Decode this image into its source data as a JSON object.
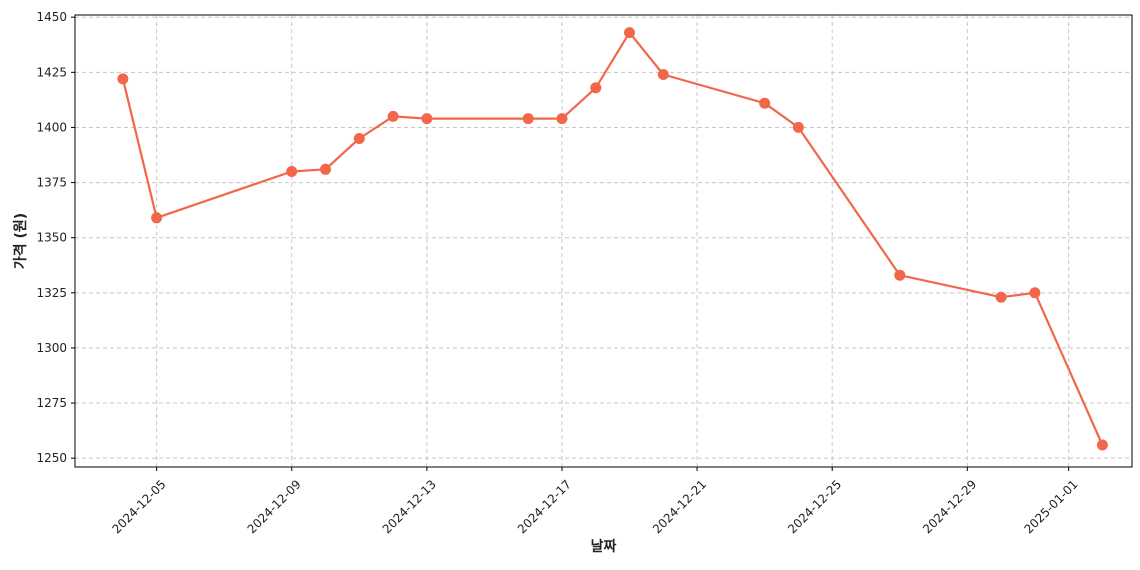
{
  "chart_data": {
    "type": "line",
    "title": "",
    "xlabel": "날짜",
    "ylabel": "가격 (원)",
    "grid": true,
    "ylim": [
      1246,
      1451
    ],
    "xlim": [
      "2024-12-02T14:00",
      "2025-01-02T21:00"
    ],
    "yticks": [
      1250,
      1275,
      1300,
      1325,
      1350,
      1375,
      1400,
      1425,
      1450
    ],
    "xticks": [
      "2024-12-05",
      "2024-12-09",
      "2024-12-13",
      "2024-12-17",
      "2024-12-21",
      "2024-12-25",
      "2024-12-29",
      "2025-01-01"
    ],
    "colors": {
      "line": "#f2674a",
      "marker": "#f2674a",
      "grid": "#c8c8c8"
    },
    "series": [
      {
        "points": [
          {
            "x": "2024-12-04",
            "y": 1422
          },
          {
            "x": "2024-12-05",
            "y": 1359
          },
          {
            "x": "2024-12-09",
            "y": 1380
          },
          {
            "x": "2024-12-10",
            "y": 1381
          },
          {
            "x": "2024-12-11",
            "y": 1395
          },
          {
            "x": "2024-12-12",
            "y": 1405
          },
          {
            "x": "2024-12-13",
            "y": 1404
          },
          {
            "x": "2024-12-16",
            "y": 1404
          },
          {
            "x": "2024-12-17",
            "y": 1404
          },
          {
            "x": "2024-12-18",
            "y": 1418
          },
          {
            "x": "2024-12-19",
            "y": 1443
          },
          {
            "x": "2024-12-20",
            "y": 1424
          },
          {
            "x": "2024-12-23",
            "y": 1411
          },
          {
            "x": "2024-12-24",
            "y": 1400
          },
          {
            "x": "2024-12-27",
            "y": 1333
          },
          {
            "x": "2024-12-30",
            "y": 1323
          },
          {
            "x": "2024-12-31",
            "y": 1325
          },
          {
            "x": "2025-01-02",
            "y": 1256
          }
        ]
      }
    ]
  }
}
